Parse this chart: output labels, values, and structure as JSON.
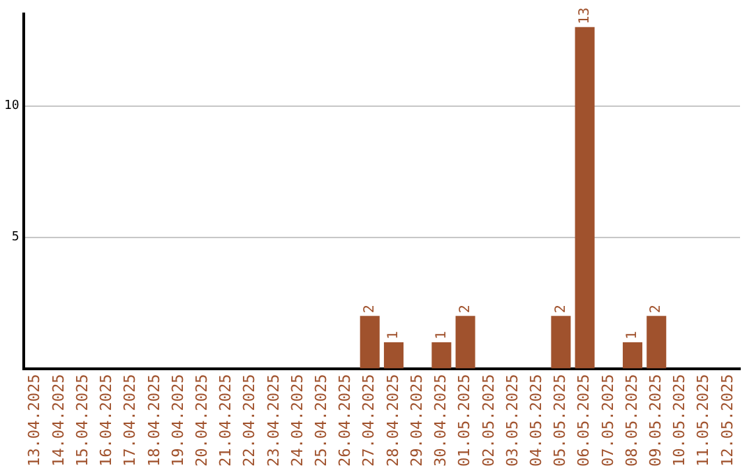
{
  "chart_data": {
    "type": "bar",
    "categories": [
      "13.04.2025",
      "14.04.2025",
      "15.04.2025",
      "16.04.2025",
      "17.04.2025",
      "18.04.2025",
      "19.04.2025",
      "20.04.2025",
      "21.04.2025",
      "22.04.2025",
      "23.04.2025",
      "24.04.2025",
      "25.04.2025",
      "26.04.2025",
      "27.04.2025",
      "28.04.2025",
      "29.04.2025",
      "30.04.2025",
      "01.05.2025",
      "02.05.2025",
      "03.05.2025",
      "04.05.2025",
      "05.05.2025",
      "06.05.2025",
      "07.05.2025",
      "08.05.2025",
      "09.05.2025",
      "10.05.2025",
      "11.05.2025",
      "12.05.2025"
    ],
    "values": [
      0,
      0,
      0,
      0,
      0,
      0,
      0,
      0,
      0,
      0,
      0,
      0,
      0,
      0,
      2,
      1,
      0,
      1,
      2,
      0,
      0,
      0,
      2,
      13,
      0,
      1,
      2,
      0,
      0,
      0
    ],
    "value_labels": [
      null,
      null,
      null,
      null,
      null,
      null,
      null,
      null,
      null,
      null,
      null,
      null,
      null,
      null,
      "2",
      "1",
      null,
      "1",
      "2",
      null,
      null,
      null,
      "2",
      "13",
      null,
      "1",
      "2",
      null,
      null,
      null
    ],
    "color": "#a0522d",
    "ylim": [
      0,
      13.5
    ],
    "yticks": [
      5,
      10
    ],
    "grid": "y",
    "legend": false
  }
}
